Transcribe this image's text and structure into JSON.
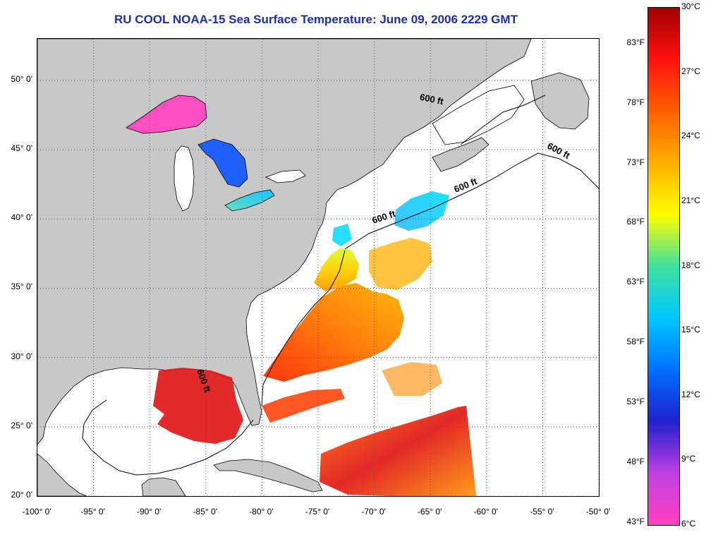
{
  "title": "RU COOL  NOAA-15  Sea Surface Temperature:  June 09, 2006 2229 GMT",
  "map": {
    "lon_range": [
      -100,
      -50
    ],
    "lat_range": [
      20,
      53
    ],
    "lat_ticks": [
      {
        "value": 50,
        "label": "50° 0'"
      },
      {
        "value": 45,
        "label": "45° 0'"
      },
      {
        "value": 40,
        "label": "40° 0'"
      },
      {
        "value": 35,
        "label": "35° 0'"
      },
      {
        "value": 30,
        "label": "30° 0'"
      },
      {
        "value": 25,
        "label": "25° 0'"
      },
      {
        "value": 20,
        "label": "20° 0'"
      }
    ],
    "lon_ticks": [
      {
        "value": -100,
        "label": "-100° 0'"
      },
      {
        "value": -95,
        "label": "-95° 0'"
      },
      {
        "value": -90,
        "label": "-90° 0'"
      },
      {
        "value": -85,
        "label": "-85° 0'"
      },
      {
        "value": -80,
        "label": "-80° 0'"
      },
      {
        "value": -75,
        "label": "-75° 0'"
      },
      {
        "value": -70,
        "label": "-70° 0'"
      },
      {
        "value": -65,
        "label": "-65° 0'"
      },
      {
        "value": -60,
        "label": "-60° 0'"
      },
      {
        "value": -55,
        "label": "-55° 0'"
      },
      {
        "value": -50,
        "label": "-50° 0'"
      }
    ],
    "contour_labels": [
      {
        "text": "600 ft",
        "lon": -64.5,
        "lat": 48.5,
        "angle": 12
      },
      {
        "text": "600 ft",
        "lon": -53.2,
        "lat": 44.8,
        "angle": 28
      },
      {
        "text": "600 ft",
        "lon": -61.5,
        "lat": 42.3,
        "angle": -22
      },
      {
        "text": "600 ft",
        "lon": -68.8,
        "lat": 40.0,
        "angle": -18
      },
      {
        "text": "600 ft",
        "lon": -84.8,
        "lat": 28.2,
        "angle": 70
      }
    ],
    "colors": {
      "land": "#c8c8c8",
      "ocean_nodata": "#ffffff",
      "coastline": "#000000",
      "grid": "#555555"
    }
  },
  "colorbar": {
    "range_c": [
      6,
      30
    ],
    "fahrenheit_labels": [
      {
        "value": 83,
        "label": "83°F"
      },
      {
        "value": 78,
        "label": "78°F"
      },
      {
        "value": 73,
        "label": "73°F"
      },
      {
        "value": 68,
        "label": "68°F"
      },
      {
        "value": 63,
        "label": "63°F"
      },
      {
        "value": 58,
        "label": "58°F"
      },
      {
        "value": 53,
        "label": "53°F"
      },
      {
        "value": 48,
        "label": "48°F"
      },
      {
        "value": 43,
        "label": "43°F"
      }
    ],
    "celsius_labels": [
      {
        "value": 30,
        "label": "30°C"
      },
      {
        "value": 27,
        "label": "27°C"
      },
      {
        "value": 24,
        "label": "24°C"
      },
      {
        "value": 21,
        "label": "21°C"
      },
      {
        "value": 18,
        "label": "18°C"
      },
      {
        "value": 15,
        "label": "15°C"
      },
      {
        "value": 12,
        "label": "12°C"
      },
      {
        "value": 9,
        "label": "9°C"
      },
      {
        "value": 6,
        "label": "6°C"
      }
    ],
    "stops": [
      "#ff40c0",
      "#c040e0",
      "#2020d0",
      "#0070ff",
      "#00c8ff",
      "#40e0a0",
      "#ffff00",
      "#ffb000",
      "#ff6000",
      "#ff1010",
      "#a00000"
    ]
  }
}
